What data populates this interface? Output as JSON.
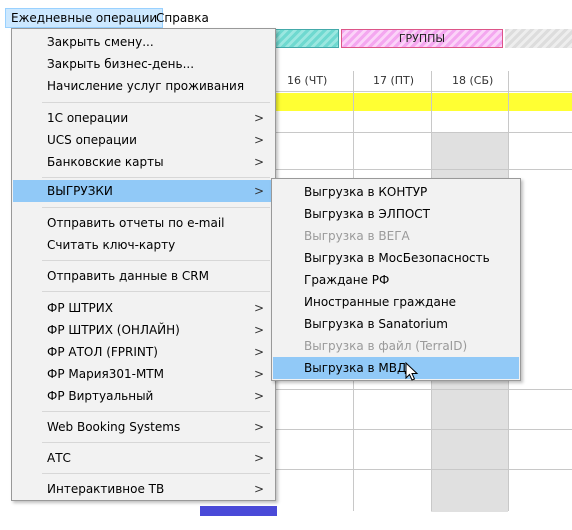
{
  "menubar": {
    "items": [
      {
        "label": "Ежедневные операции"
      },
      {
        "label": "Справка"
      }
    ]
  },
  "grid": {
    "group_header": "ГРУППЫ",
    "days": [
      "16 (ЧТ)",
      "17 (ПТ)",
      "18 (СБ)"
    ]
  },
  "menu": {
    "items": [
      {
        "label": "Закрыть смену..."
      },
      {
        "label": "Закрыть бизнес-день..."
      },
      {
        "label": "Начисление услуг проживания"
      },
      {
        "label": "1С операции"
      },
      {
        "label": "UCS операции"
      },
      {
        "label": "Банковские карты"
      },
      {
        "label": "ВЫГРУЗКИ"
      },
      {
        "label": "Отправить отчеты по e-mail"
      },
      {
        "label": "Считать ключ-карту"
      },
      {
        "label": "Отправить данные в CRM"
      },
      {
        "label": "ФР ШТРИХ"
      },
      {
        "label": "ФР ШТРИХ (ОНЛАЙН)"
      },
      {
        "label": "ФР АТОЛ (FPRINT)"
      },
      {
        "label": "ФР Мария301-МТМ"
      },
      {
        "label": "ФР Виртуальный"
      },
      {
        "label": "Web Booking Systems"
      },
      {
        "label": "АТС"
      },
      {
        "label": "Интерактивное ТВ"
      }
    ],
    "submenu_arrow": ">"
  },
  "submenu": {
    "items": [
      {
        "label": "Выгрузка в КОНТУР"
      },
      {
        "label": "Выгрузка в ЭЛПОСТ"
      },
      {
        "label": "Выгрузка в ВЕГА"
      },
      {
        "label": "Выгрузка в МосБезопасность"
      },
      {
        "label": "Граждане РФ"
      },
      {
        "label": "Иностранные граждане"
      },
      {
        "label": "Выгрузка в Sanatorium"
      },
      {
        "label": "Выгрузка в файл (TerraID)"
      },
      {
        "label": "Выгрузка в МВД"
      }
    ]
  },
  "colors": {
    "highlight": "#91c9f7",
    "menu_bg": "#f2f2f2",
    "disabled_text": "#9a9a9a",
    "yellow_row": "#ffff33"
  }
}
